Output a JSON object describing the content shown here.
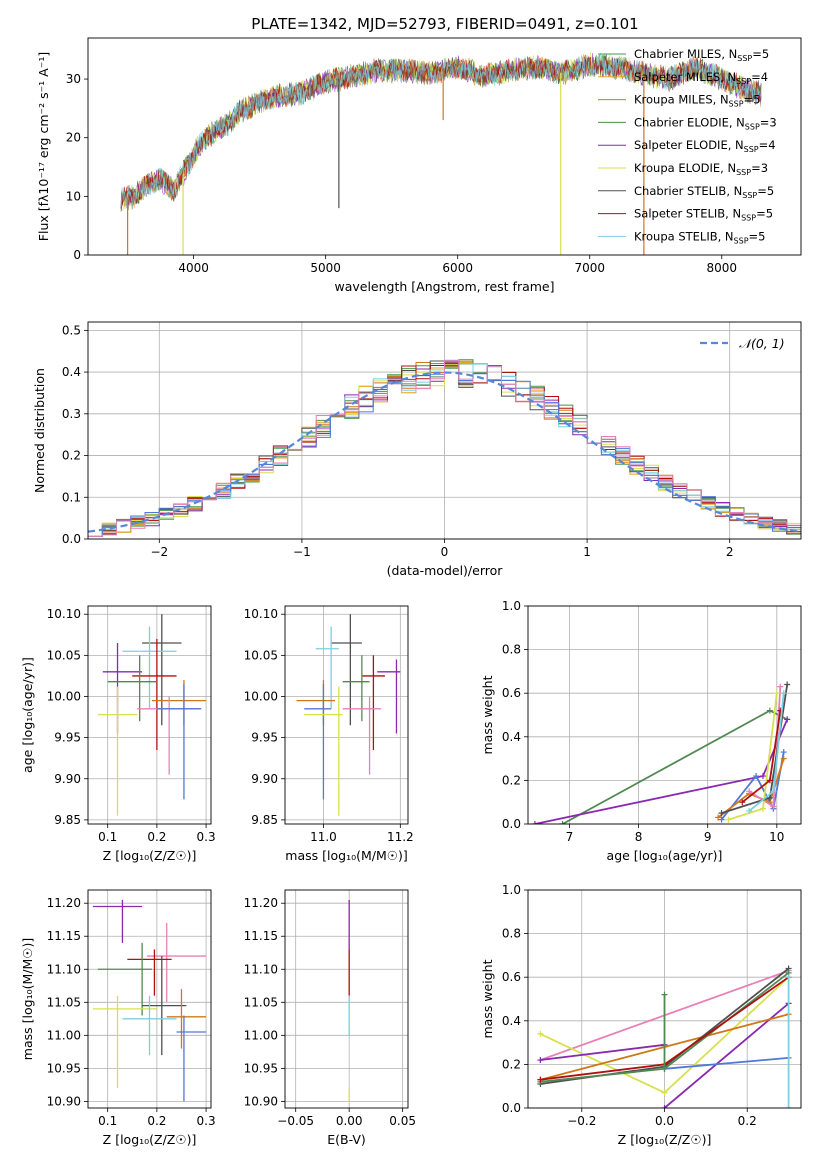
{
  "figure_title": "PLATE=1342, MJD=52793, FIBERID=0491, z=0.101",
  "colors": {
    "chabrier_miles": "#4a9a4a",
    "salpeter_miles": "#e8a020",
    "kroupa_miles": "#d07818",
    "chabrier_elodie": "#508a50",
    "salpeter_elodie": "#8b28b0",
    "kroupa_elodie": "#d8e050",
    "chabrier_stelib": "#505050",
    "salpeter_stelib": "#b01010",
    "kroupa_stelib": "#78d0e0",
    "blue": "#5078d8",
    "pink": "#e880b8",
    "normal": "#5588d8",
    "grid": "#b0b0b0"
  },
  "chart_data": [
    {
      "id": "spectrum",
      "type": "line",
      "title": "PLATE=1342, MJD=52793, FIBERID=0491, z=0.101",
      "xlabel": "wavelength [Angstrom, rest frame]",
      "ylabel": "Flux [fλ10⁻¹⁷ erg cm⁻² s⁻¹ A⁻¹]",
      "xlim": [
        3200,
        8600
      ],
      "ylim": [
        0,
        37
      ],
      "xticks": [
        4000,
        5000,
        6000,
        7000,
        8000
      ],
      "yticks": [
        0,
        10,
        20,
        30
      ],
      "grid": false,
      "legend_position": "right",
      "legend": [
        {
          "label": "Chabrier MILES, N",
          "sub": "SSP",
          "suffix": "=5",
          "color": "#4a9a4a"
        },
        {
          "label": "Salpeter MILES, N",
          "sub": "SSP",
          "suffix": "=4",
          "color": "#e8a020"
        },
        {
          "label": "Kroupa MILES, N",
          "sub": "SSP",
          "suffix": "=5",
          "color": "#d07818"
        },
        {
          "label": "Chabrier ELODIE, N",
          "sub": "SSP",
          "suffix": "=3",
          "color": "#508a50"
        },
        {
          "label": "Salpeter ELODIE, N",
          "sub": "SSP",
          "suffix": "=4",
          "color": "#8b28b0"
        },
        {
          "label": "Kroupa ELODIE, N",
          "sub": "SSP",
          "suffix": "=3",
          "color": "#d8e050"
        },
        {
          "label": "Chabrier STELIB, N",
          "sub": "SSP",
          "suffix": "=5",
          "color": "#505050"
        },
        {
          "label": "Salpeter STELIB, N",
          "sub": "SSP",
          "suffix": "=5",
          "color": "#b01010"
        },
        {
          "label": "Kroupa STELIB, N",
          "sub": "SSP",
          "suffix": "=5",
          "color": "#78d0e0"
        }
      ],
      "continuum": {
        "x": [
          3450,
          3550,
          3650,
          3750,
          3850,
          3950,
          4050,
          4150,
          4250,
          4350,
          4450,
          4600,
          4800,
          5000,
          5200,
          5400,
          5600,
          5800,
          6000,
          6200,
          6400,
          6600,
          6800,
          7000,
          7200,
          7400,
          7600,
          7800,
          8000,
          8200,
          8300
        ],
        "y": [
          9.5,
          10,
          12,
          13,
          11,
          15,
          19,
          21,
          22,
          24.5,
          25.5,
          27,
          27.5,
          29.5,
          30.5,
          31.5,
          31.5,
          31,
          32,
          30.5,
          31.5,
          32,
          31,
          32.5,
          32,
          31,
          30,
          32,
          30,
          28,
          27.5
        ]
      },
      "drops": [
        {
          "x": 3500,
          "y": 0,
          "color": "#d07818"
        },
        {
          "x": 3920,
          "y": 0,
          "color": "#d8e050"
        },
        {
          "x": 5100,
          "y": 8,
          "color": "#505050"
        },
        {
          "x": 5890,
          "y": 23,
          "color": "#d07818"
        },
        {
          "x": 6780,
          "y": 0,
          "color": "#d8e050"
        },
        {
          "x": 7410,
          "y": 0,
          "color": "#d07818"
        }
      ]
    },
    {
      "id": "residuals",
      "type": "bar",
      "xlabel": "(data-model)/error",
      "ylabel": "Normed distribution",
      "xlim": [
        -2.5,
        2.5
      ],
      "ylim": [
        0,
        0.52
      ],
      "xticks": [
        -2,
        -1,
        0,
        1,
        2
      ],
      "yticks": [
        0.0,
        0.1,
        0.2,
        0.3,
        0.4,
        0.5
      ],
      "grid": true,
      "legend_position": "top-right",
      "legend": [
        {
          "label": "𝒩(0, 1)",
          "color": "#5588d8",
          "style": "dashed"
        }
      ],
      "bin_width": 0.1,
      "bin_start": -2.5
    },
    {
      "id": "age_vs_Z",
      "type": "scatter",
      "xlabel": "Z [log₁₀(Z/Z☉)]",
      "ylabel": "age  [log₁₀(age/yr)]",
      "xlim": [
        0.06,
        0.31
      ],
      "ylim": [
        9.845,
        10.11
      ],
      "xticks": [
        0.1,
        0.2,
        0.3
      ],
      "yticks": [
        9.85,
        9.9,
        9.95,
        10.0,
        10.05,
        10.1
      ],
      "grid": true,
      "points": [
        {
          "x": 0.21,
          "y": 10.065,
          "xerr": [
            0.17,
            0.25
          ],
          "yerr": [
            9.965,
            10.1
          ],
          "color": "#505050"
        },
        {
          "x": 0.185,
          "y": 10.055,
          "xerr": [
            0.13,
            0.24
          ],
          "yerr": [
            9.985,
            10.085
          ],
          "color": "#78d0e0"
        },
        {
          "x": 0.12,
          "y": 10.03,
          "xerr": [
            0.09,
            0.17
          ],
          "yerr": [
            9.955,
            10.065
          ],
          "color": "#8b28b0"
        },
        {
          "x": 0.2,
          "y": 10.025,
          "xerr": [
            0.15,
            0.24
          ],
          "yerr": [
            9.935,
            10.07
          ],
          "color": "#b01010"
        },
        {
          "x": 0.165,
          "y": 10.018,
          "xerr": [
            0.1,
            0.2
          ],
          "yerr": [
            9.97,
            10.05
          ],
          "color": "#508a50"
        },
        {
          "x": 0.255,
          "y": 9.995,
          "xerr": [
            0.19,
            0.3
          ],
          "yerr": [
            9.965,
            10.02
          ],
          "color": "#d07818"
        },
        {
          "x": 0.225,
          "y": 9.985,
          "xerr": [
            0.16,
            0.29
          ],
          "yerr": [
            9.905,
            10.0
          ],
          "color": "#e880b8"
        },
        {
          "x": 0.255,
          "y": 9.985,
          "xerr": [
            0.2,
            0.29
          ],
          "yerr": [
            9.875,
            10.015
          ],
          "color": "#5078d8"
        },
        {
          "x": 0.12,
          "y": 9.978,
          "xerr": [
            0.08,
            0.16
          ],
          "yerr": [
            9.855,
            10.012
          ],
          "color": "#d8e050"
        }
      ]
    },
    {
      "id": "age_vs_mass",
      "type": "scatter",
      "xlabel": "mass [log₁₀(M/M☉)]",
      "ylabel": "",
      "xlim": [
        10.9,
        11.22
      ],
      "ylim": [
        9.845,
        10.11
      ],
      "xticks": [
        11.0,
        11.2
      ],
      "yticks": [
        9.85,
        9.9,
        9.95,
        10.0,
        10.05,
        10.1
      ],
      "grid": true,
      "points": [
        {
          "x": 11.07,
          "y": 10.065,
          "xerr": [
            11.02,
            11.1
          ],
          "yerr": [
            9.965,
            10.1
          ],
          "color": "#505050"
        },
        {
          "x": 11.02,
          "y": 10.058,
          "xerr": [
            10.98,
            11.04
          ],
          "yerr": [
            9.985,
            10.085
          ],
          "color": "#78d0e0"
        },
        {
          "x": 11.19,
          "y": 10.03,
          "xerr": [
            11.14,
            11.2
          ],
          "yerr": [
            9.955,
            10.045
          ],
          "color": "#8b28b0"
        },
        {
          "x": 11.13,
          "y": 10.025,
          "xerr": [
            11.1,
            11.16
          ],
          "yerr": [
            9.935,
            10.05
          ],
          "color": "#b01010"
        },
        {
          "x": 11.1,
          "y": 10.018,
          "xerr": [
            11.05,
            11.12
          ],
          "yerr": [
            9.97,
            10.05
          ],
          "color": "#508a50"
        },
        {
          "x": 11.0,
          "y": 9.995,
          "xerr": [
            10.93,
            11.03
          ],
          "yerr": [
            9.965,
            10.02
          ],
          "color": "#d07818"
        },
        {
          "x": 11.12,
          "y": 9.985,
          "xerr": [
            11.05,
            11.15
          ],
          "yerr": [
            9.905,
            10.0
          ],
          "color": "#e880b8"
        },
        {
          "x": 11.0,
          "y": 9.985,
          "xerr": [
            10.95,
            11.02
          ],
          "yerr": [
            9.875,
            10.015
          ],
          "color": "#5078d8"
        },
        {
          "x": 11.04,
          "y": 9.978,
          "xerr": [
            10.95,
            11.05
          ],
          "yerr": [
            9.855,
            10.012
          ],
          "color": "#d8e050"
        }
      ]
    },
    {
      "id": "weight_vs_age",
      "type": "line",
      "xlabel": "age  [log₁₀(age/yr)]",
      "ylabel": "mass weight",
      "xlim": [
        6.4,
        10.35
      ],
      "ylim": [
        0,
        1.0
      ],
      "xticks": [
        7,
        8,
        9,
        10
      ],
      "yticks": [
        0.0,
        0.2,
        0.4,
        0.6,
        0.8,
        1.0
      ],
      "grid": true,
      "series": [
        {
          "color": "#508a50",
          "x": [
            6.9,
            9.9,
            10.15
          ],
          "y": [
            0.0,
            0.52,
            0.48
          ]
        },
        {
          "color": "#8b28b0",
          "x": [
            6.5,
            9.8,
            10.15
          ],
          "y": [
            0.0,
            0.22,
            0.48
          ]
        },
        {
          "color": "#5078d8",
          "x": [
            9.2,
            9.7,
            9.95,
            10.1
          ],
          "y": [
            0.02,
            0.22,
            0.07,
            0.33
          ]
        },
        {
          "color": "#d07818",
          "x": [
            9.15,
            9.6,
            9.9,
            10.1
          ],
          "y": [
            0.03,
            0.14,
            0.1,
            0.3
          ]
        },
        {
          "color": "#e880b8",
          "x": [
            9.6,
            9.95,
            10.05
          ],
          "y": [
            0.15,
            0.08,
            0.63
          ]
        },
        {
          "color": "#d8e050",
          "x": [
            9.3,
            9.8,
            10.0
          ],
          "y": [
            0.02,
            0.07,
            0.6
          ]
        },
        {
          "color": "#505050",
          "x": [
            9.2,
            9.9,
            10.15
          ],
          "y": [
            0.05,
            0.12,
            0.64
          ]
        },
        {
          "color": "#b01010",
          "x": [
            9.5,
            9.9,
            10.05
          ],
          "y": [
            0.1,
            0.2,
            0.52
          ]
        },
        {
          "color": "#78d0e0",
          "x": [
            9.6,
            9.95,
            10.1
          ],
          "y": [
            0.06,
            0.15,
            0.6
          ]
        }
      ]
    },
    {
      "id": "mass_vs_Z",
      "type": "scatter",
      "xlabel": "Z [log₁₀(Z/Z☉)]",
      "ylabel": "mass [log₁₀(M/M☉)]",
      "xlim": [
        0.06,
        0.31
      ],
      "ylim": [
        10.89,
        11.22
      ],
      "xticks": [
        0.1,
        0.2,
        0.3
      ],
      "yticks": [
        10.9,
        10.95,
        11.0,
        11.05,
        11.1,
        11.15,
        11.2
      ],
      "grid": true,
      "points": [
        {
          "x": 0.13,
          "y": 11.195,
          "xerr": [
            0.07,
            0.17
          ],
          "yerr": [
            11.14,
            11.205
          ],
          "color": "#8b28b0"
        },
        {
          "x": 0.22,
          "y": 11.12,
          "xerr": [
            0.18,
            0.3
          ],
          "yerr": [
            11.05,
            11.17
          ],
          "color": "#e880b8"
        },
        {
          "x": 0.195,
          "y": 11.115,
          "xerr": [
            0.14,
            0.23
          ],
          "yerr": [
            11.06,
            11.13
          ],
          "color": "#b01010"
        },
        {
          "x": 0.17,
          "y": 11.1,
          "xerr": [
            0.08,
            0.19
          ],
          "yerr": [
            11.03,
            11.14
          ],
          "color": "#508a50"
        },
        {
          "x": 0.21,
          "y": 11.045,
          "xerr": [
            0.17,
            0.26
          ],
          "yerr": [
            10.97,
            11.12
          ],
          "color": "#505050"
        },
        {
          "x": 0.12,
          "y": 11.04,
          "xerr": [
            0.07,
            0.2
          ],
          "yerr": [
            10.92,
            11.06
          ],
          "color": "#d8e050"
        },
        {
          "x": 0.25,
          "y": 11.028,
          "xerr": [
            0.22,
            0.3
          ],
          "yerr": [
            10.98,
            11.07
          ],
          "color": "#d07818"
        },
        {
          "x": 0.185,
          "y": 11.025,
          "xerr": [
            0.13,
            0.24
          ],
          "yerr": [
            10.97,
            11.06
          ],
          "color": "#78d0e0"
        },
        {
          "x": 0.255,
          "y": 11.005,
          "xerr": [
            0.24,
            0.3
          ],
          "yerr": [
            10.9,
            11.03
          ],
          "color": "#5078d8"
        }
      ]
    },
    {
      "id": "mass_vs_ebv",
      "type": "scatter",
      "xlabel": "E(B-V)",
      "ylabel": "",
      "xlim": [
        -0.06,
        0.055
      ],
      "ylim": [
        10.89,
        11.22
      ],
      "xticks": [
        -0.05,
        0.0,
        0.05
      ],
      "yticks": [
        10.9,
        10.95,
        11.0,
        11.05,
        11.1,
        11.15,
        11.2
      ],
      "grid": true,
      "segments": [
        {
          "y": [
            11.13,
            11.205
          ],
          "color": "#8b28b0"
        },
        {
          "y": [
            11.06,
            11.13
          ],
          "color": "#b01010"
        },
        {
          "y": [
            11.0,
            11.06
          ],
          "color": "#78d0e0"
        },
        {
          "y": [
            10.9,
            10.92
          ],
          "color": "#d8e050"
        }
      ]
    },
    {
      "id": "weight_vs_Z",
      "type": "line",
      "xlabel": "Z [log₁₀(Z/Z☉)]",
      "ylabel": "mass weight",
      "xlim": [
        -0.33,
        0.33
      ],
      "ylim": [
        0,
        1.0
      ],
      "xticks": [
        -0.2,
        0.0,
        0.2
      ],
      "yticks": [
        0.0,
        0.2,
        0.4,
        0.6,
        0.8,
        1.0
      ],
      "grid": true,
      "series": [
        {
          "color": "#e880b8",
          "x": [
            -0.3,
            0.3
          ],
          "y": [
            0.22,
            0.63
          ]
        },
        {
          "color": "#d8e050",
          "x": [
            -0.3,
            0.0,
            0.3
          ],
          "y": [
            0.34,
            0.07,
            0.6
          ]
        },
        {
          "color": "#8b28b0",
          "x": [
            -0.3,
            0.0
          ],
          "y": [
            0.22,
            0.29
          ]
        },
        {
          "color": "#8b28b0",
          "x": [
            0.0,
            0.3
          ],
          "y": [
            0.0,
            0.48
          ]
        },
        {
          "color": "#d07818",
          "x": [
            -0.3,
            0.0,
            0.3
          ],
          "y": [
            0.13,
            0.28,
            0.43
          ]
        },
        {
          "color": "#505050",
          "x": [
            -0.3,
            0.0,
            0.3
          ],
          "y": [
            0.11,
            0.19,
            0.64
          ]
        },
        {
          "color": "#508a50",
          "x": [
            -0.3,
            0.0,
            0.3
          ],
          "y": [
            0.12,
            0.18,
            0.62
          ]
        },
        {
          "color": "#b01010",
          "x": [
            -0.3,
            0.0,
            0.3
          ],
          "y": [
            0.13,
            0.2,
            0.6
          ]
        },
        {
          "color": "#5078d8",
          "x": [
            0.0,
            0.3
          ],
          "y": [
            0.18,
            0.23
          ]
        },
        {
          "color": "#508a50",
          "x": [
            0.0,
            0.0
          ],
          "y": [
            0.18,
            0.52
          ]
        },
        {
          "color": "#78d0e0",
          "x": [
            0.3,
            0.3
          ],
          "y": [
            0.0,
            0.6
          ]
        }
      ]
    }
  ]
}
